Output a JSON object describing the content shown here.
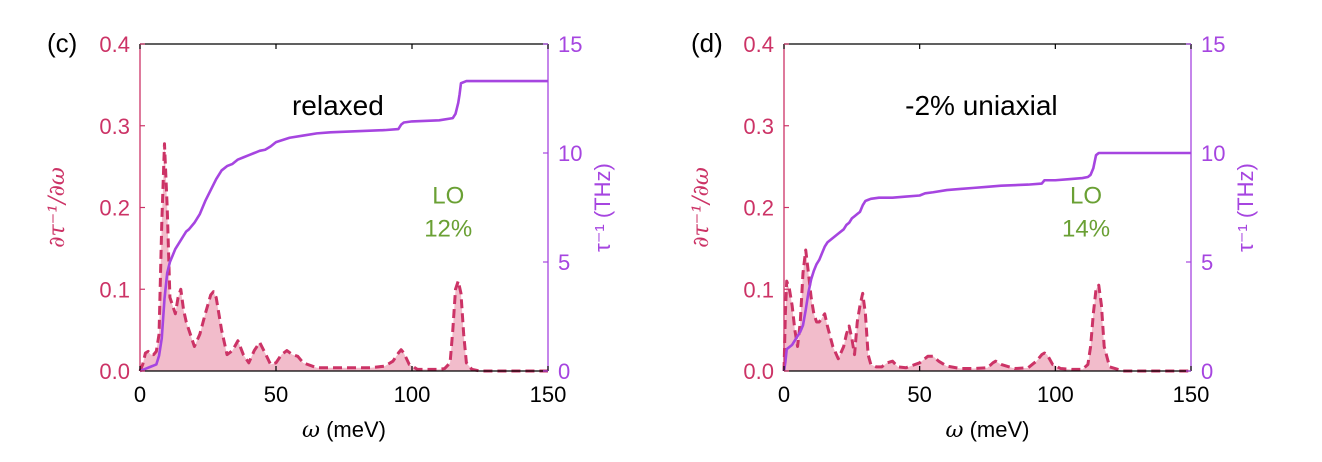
{
  "colors": {
    "left_axis": "#cc3366",
    "right_axis": "#a645e0",
    "line": "#a645e0",
    "dashed": "#cc3366",
    "fill": "#f2bccb",
    "annotation": "#6aa034",
    "black": "#000000"
  },
  "chart_data": [
    {
      "type": "line",
      "panel_label": "(c)",
      "title": "relaxed",
      "xlabel_sym": "ω",
      "xlabel_unit": " (meV)",
      "ylabel_left": "∂τ⁻¹/∂ω",
      "ylabel_right": "τ⁻¹ (THz)",
      "xlim": [
        0,
        150
      ],
      "ylim_left": [
        0,
        0.4
      ],
      "ylim_right": [
        0,
        15
      ],
      "xticks": [
        "0",
        "50",
        "100",
        "150"
      ],
      "yticks_left": [
        "0.0",
        "0.1",
        "0.2",
        "0.3",
        "0.4"
      ],
      "yticks_right": [
        "0",
        "5",
        "10",
        "15"
      ],
      "annotation": {
        "line1": "LO",
        "line2": "12%",
        "x": 117,
        "y": 0.205
      },
      "spectral": {
        "name": "∂τ⁻¹/∂ω",
        "x": [
          0,
          1,
          2,
          3,
          4,
          5,
          6,
          7,
          8,
          9,
          10,
          11,
          12,
          13,
          14,
          15,
          16,
          17,
          18,
          20,
          22,
          24,
          26,
          27,
          28,
          30,
          32,
          34,
          36,
          38,
          40,
          42,
          44,
          46,
          48,
          50,
          52,
          54,
          56,
          58,
          60,
          65,
          70,
          75,
          80,
          85,
          90,
          93,
          95,
          96,
          97,
          99,
          102,
          106,
          110,
          112,
          114,
          115,
          116,
          117,
          118,
          119,
          120,
          122,
          125,
          130,
          140,
          150
        ],
        "y": [
          0.0,
          0.008,
          0.022,
          0.024,
          0.02,
          0.02,
          0.024,
          0.045,
          0.18,
          0.278,
          0.2,
          0.09,
          0.08,
          0.07,
          0.09,
          0.1,
          0.075,
          0.06,
          0.05,
          0.03,
          0.045,
          0.07,
          0.093,
          0.097,
          0.09,
          0.05,
          0.02,
          0.025,
          0.037,
          0.02,
          0.01,
          0.025,
          0.035,
          0.022,
          0.008,
          0.01,
          0.02,
          0.025,
          0.02,
          0.018,
          0.01,
          0.004,
          0.004,
          0.004,
          0.004,
          0.004,
          0.006,
          0.012,
          0.022,
          0.026,
          0.022,
          0.008,
          0.002,
          0.002,
          0.002,
          0.003,
          0.01,
          0.05,
          0.1,
          0.11,
          0.095,
          0.045,
          0.01,
          0.002,
          0.0,
          0.0,
          0.0,
          0.0
        ]
      },
      "cumulative": {
        "name": "τ⁻¹",
        "x": [
          0,
          2,
          4,
          5,
          6,
          7,
          8,
          9,
          10,
          11,
          12,
          13,
          14,
          15,
          16,
          17,
          18,
          20,
          22,
          24,
          26,
          28,
          30,
          32,
          34,
          36,
          38,
          40,
          42,
          44,
          46,
          48,
          50,
          55,
          60,
          65,
          70,
          80,
          90,
          95,
          96,
          97,
          100,
          110,
          115,
          116,
          117,
          117.5,
          118,
          120,
          130,
          150
        ],
        "y": [
          0.0,
          0.1,
          0.2,
          0.25,
          0.3,
          0.7,
          1.5,
          3.3,
          4.5,
          5.0,
          5.3,
          5.6,
          5.8,
          6.0,
          6.2,
          6.4,
          6.5,
          6.8,
          7.2,
          7.8,
          8.3,
          8.8,
          9.2,
          9.4,
          9.5,
          9.7,
          9.8,
          9.9,
          10.0,
          10.1,
          10.15,
          10.3,
          10.5,
          10.7,
          10.8,
          10.9,
          10.95,
          11.0,
          11.05,
          11.1,
          11.3,
          11.4,
          11.45,
          11.5,
          11.6,
          11.8,
          12.3,
          12.7,
          13.2,
          13.3,
          13.3,
          13.3
        ]
      }
    },
    {
      "type": "line",
      "panel_label": "(d)",
      "title": "-2% uniaxial",
      "xlabel_sym": "ω",
      "xlabel_unit": " (meV)",
      "ylabel_left": "∂τ⁻¹/∂ω",
      "ylabel_right": "τ⁻¹ (THz)",
      "xlim": [
        0,
        150
      ],
      "ylim_left": [
        0,
        0.4
      ],
      "ylim_right": [
        0,
        15
      ],
      "xticks": [
        "0",
        "50",
        "100",
        "150"
      ],
      "yticks_left": [
        "0.0",
        "0.1",
        "0.2",
        "0.3",
        "0.4"
      ],
      "yticks_right": [
        "0",
        "5",
        "10",
        "15"
      ],
      "annotation": {
        "line1": "LO",
        "line2": "14%",
        "x": 115,
        "y": 0.205
      },
      "spectral": {
        "name": "∂τ⁻¹/∂ω",
        "x": [
          0,
          0.5,
          1,
          2,
          3,
          4,
          5,
          6,
          7,
          8,
          9,
          10,
          11,
          12,
          13,
          14,
          15,
          16,
          18,
          20,
          22,
          23,
          24,
          25,
          26,
          27,
          28,
          29,
          30,
          31,
          32,
          34,
          36,
          38,
          40,
          42,
          45,
          50,
          53,
          55,
          57,
          60,
          65,
          70,
          75,
          77,
          78,
          80,
          85,
          90,
          93,
          95,
          96,
          97,
          99,
          102,
          106,
          110,
          112,
          113,
          114,
          115,
          116,
          117,
          118,
          120,
          125,
          130,
          140,
          150
        ],
        "y": [
          0.0,
          0.07,
          0.11,
          0.1,
          0.08,
          0.05,
          0.03,
          0.06,
          0.12,
          0.148,
          0.12,
          0.09,
          0.07,
          0.06,
          0.06,
          0.065,
          0.07,
          0.055,
          0.03,
          0.015,
          0.03,
          0.045,
          0.055,
          0.04,
          0.02,
          0.06,
          0.08,
          0.095,
          0.07,
          0.02,
          0.008,
          0.005,
          0.005,
          0.01,
          0.012,
          0.005,
          0.004,
          0.01,
          0.018,
          0.018,
          0.012,
          0.006,
          0.003,
          0.003,
          0.004,
          0.01,
          0.012,
          0.008,
          0.003,
          0.004,
          0.012,
          0.02,
          0.022,
          0.02,
          0.008,
          0.003,
          0.002,
          0.002,
          0.008,
          0.03,
          0.07,
          0.1,
          0.105,
          0.08,
          0.03,
          0.005,
          0.0,
          0.0,
          0.0,
          0.0
        ]
      },
      "cumulative": {
        "name": "τ⁻¹",
        "x": [
          0,
          0.5,
          1,
          2,
          3,
          4,
          5,
          6,
          7,
          8,
          9,
          10,
          11,
          12,
          13,
          14,
          15,
          16,
          18,
          20,
          22,
          23,
          24,
          25,
          26,
          27,
          28,
          29,
          30,
          31,
          32,
          35,
          40,
          45,
          50,
          52,
          55,
          60,
          65,
          70,
          75,
          80,
          90,
          95,
          96,
          100,
          105,
          110,
          112,
          113,
          114,
          115,
          116,
          120,
          130,
          150
        ],
        "y": [
          0.0,
          0.4,
          1.0,
          1.1,
          1.2,
          1.4,
          1.6,
          1.8,
          2.1,
          2.8,
          3.6,
          4.2,
          4.6,
          4.9,
          5.1,
          5.4,
          5.7,
          5.9,
          6.1,
          6.3,
          6.5,
          6.7,
          6.8,
          7.0,
          7.1,
          7.2,
          7.3,
          7.6,
          7.8,
          7.85,
          7.9,
          7.95,
          7.95,
          8.0,
          8.05,
          8.15,
          8.2,
          8.3,
          8.35,
          8.4,
          8.45,
          8.5,
          8.55,
          8.6,
          8.75,
          8.75,
          8.8,
          8.85,
          8.9,
          9.0,
          9.3,
          9.9,
          10.0,
          10.0,
          10.0,
          10.0
        ]
      }
    }
  ]
}
